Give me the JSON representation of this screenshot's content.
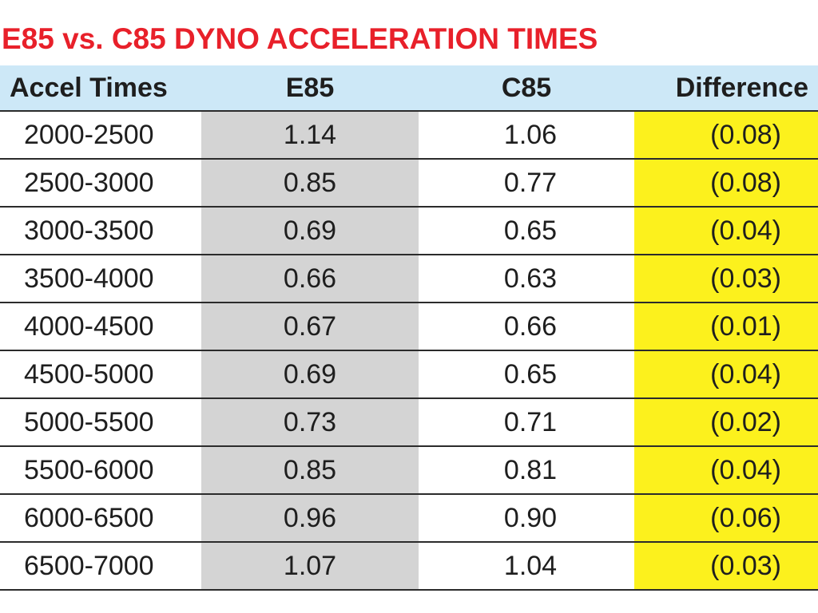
{
  "chart_data": {
    "type": "table",
    "title": "E85 vs. C85 DYNO ACCELERATION TIMES",
    "columns": [
      "Accel Times",
      "E85",
      "C85",
      "Difference"
    ],
    "rows": [
      [
        "2000-2500",
        "1.14",
        "1.06",
        "(0.08)"
      ],
      [
        "2500-3000",
        "0.85",
        "0.77",
        "(0.08)"
      ],
      [
        "3000-3500",
        "0.69",
        "0.65",
        "(0.04)"
      ],
      [
        "3500-4000",
        "0.66",
        "0.63",
        "(0.03)"
      ],
      [
        "4000-4500",
        "0.67",
        "0.66",
        "(0.01)"
      ],
      [
        "4500-5000",
        "0.69",
        "0.65",
        "(0.04)"
      ],
      [
        "5000-5500",
        "0.73",
        "0.71",
        "(0.02)"
      ],
      [
        "5500-6000",
        "0.85",
        "0.81",
        "(0.04)"
      ],
      [
        "6000-6500",
        "0.96",
        "0.90",
        "(0.06)"
      ],
      [
        "6500-7000",
        "1.07",
        "1.04",
        "(0.03)"
      ]
    ]
  },
  "colors": {
    "title": "#e8202a",
    "header_bg": "#cde8f7",
    "e85_column_bg": "#d4d4d4",
    "difference_column_bg": "#fcf11d",
    "rule": "#2b2b2b",
    "text": "#1e1e1e"
  }
}
